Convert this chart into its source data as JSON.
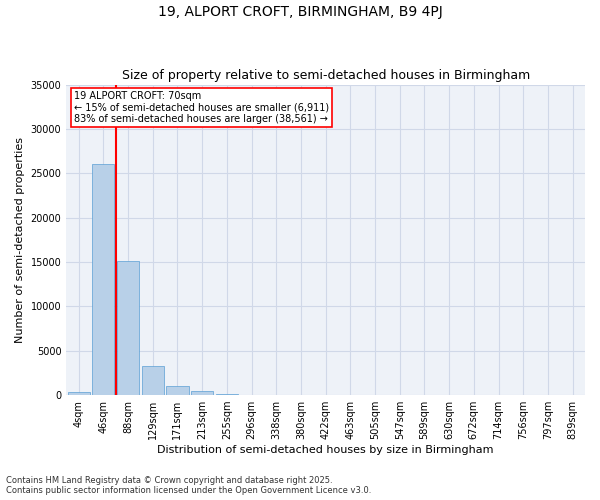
{
  "title": "19, ALPORT CROFT, BIRMINGHAM, B9 4PJ",
  "subtitle": "Size of property relative to semi-detached houses in Birmingham",
  "xlabel": "Distribution of semi-detached houses by size in Birmingham",
  "ylabel": "Number of semi-detached properties",
  "categories": [
    "4sqm",
    "46sqm",
    "88sqm",
    "129sqm",
    "171sqm",
    "213sqm",
    "255sqm",
    "296sqm",
    "338sqm",
    "380sqm",
    "422sqm",
    "463sqm",
    "505sqm",
    "547sqm",
    "589sqm",
    "630sqm",
    "672sqm",
    "714sqm",
    "756sqm",
    "797sqm",
    "839sqm"
  ],
  "values": [
    350,
    26100,
    15100,
    3300,
    1050,
    450,
    130,
    40,
    10,
    5,
    3,
    2,
    1,
    1,
    0,
    0,
    0,
    0,
    0,
    0,
    0
  ],
  "bar_color": "#b8d0e8",
  "bar_edge_color": "#5a9fd4",
  "vline_x_index": 1.5,
  "vline_color": "red",
  "annotation_title": "19 ALPORT CROFT: 70sqm",
  "annotation_line1": "← 15% of semi-detached houses are smaller (6,911)",
  "annotation_line2": "83% of semi-detached houses are larger (38,561) →",
  "annotation_box_color": "white",
  "annotation_box_edgecolor": "red",
  "ylim": [
    0,
    35000
  ],
  "yticks": [
    0,
    5000,
    10000,
    15000,
    20000,
    25000,
    30000,
    35000
  ],
  "ytick_labels": [
    "0",
    "5000",
    "10000",
    "15000",
    "20000",
    "25000",
    "30000",
    "35000"
  ],
  "grid_color": "#d0d8e8",
  "background_color": "#eef2f8",
  "footnote1": "Contains HM Land Registry data © Crown copyright and database right 2025.",
  "footnote2": "Contains public sector information licensed under the Open Government Licence v3.0.",
  "title_fontsize": 10,
  "subtitle_fontsize": 9,
  "xlabel_fontsize": 8,
  "ylabel_fontsize": 8,
  "annotation_fontsize": 7,
  "tick_fontsize": 7,
  "footnote_fontsize": 6
}
